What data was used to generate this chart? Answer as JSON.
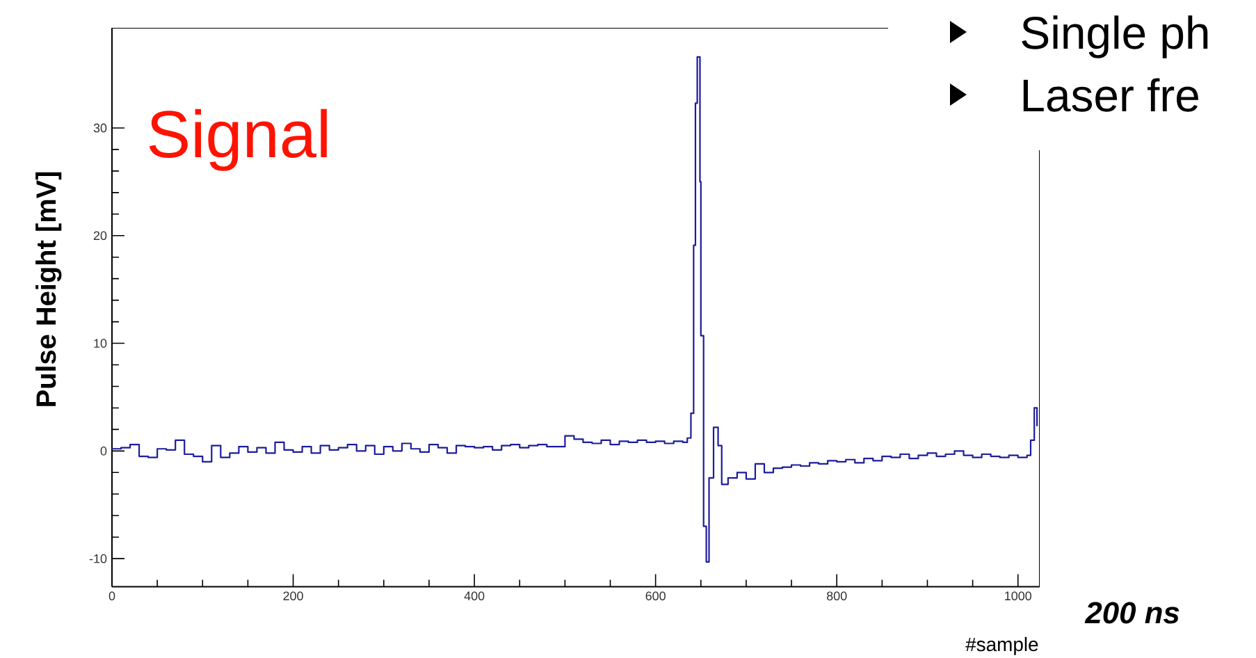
{
  "chart_data": {
    "type": "step",
    "xlabel": "#sample",
    "ylabel": "Pulse Height [mV]",
    "annotations": [
      "Signal",
      "Single ph",
      "Laser fre",
      "200 ns"
    ],
    "xlim": [
      0,
      1024
    ],
    "ylim": [
      -12.6,
      39.3
    ],
    "xticks": [
      0,
      200,
      400,
      600,
      800,
      1000
    ],
    "yticks": [
      -10,
      0,
      10,
      20,
      30
    ],
    "grid": false,
    "series": [
      {
        "color": "#1c1c9c",
        "x": [
          0,
          10,
          20,
          30,
          40,
          50,
          60,
          70,
          80,
          90,
          100,
          110,
          120,
          130,
          140,
          150,
          160,
          170,
          180,
          190,
          200,
          210,
          220,
          230,
          240,
          250,
          260,
          270,
          280,
          290,
          300,
          310,
          320,
          330,
          340,
          350,
          360,
          370,
          380,
          390,
          400,
          410,
          420,
          430,
          440,
          450,
          460,
          470,
          480,
          490,
          500,
          510,
          520,
          530,
          540,
          550,
          560,
          570,
          580,
          590,
          600,
          610,
          620,
          630,
          635,
          639,
          642,
          644,
          646,
          649,
          650,
          653,
          656,
          659,
          664,
          669,
          673,
          680,
          690,
          700,
          710,
          720,
          730,
          740,
          750,
          760,
          770,
          780,
          790,
          800,
          810,
          820,
          830,
          840,
          850,
          860,
          870,
          880,
          890,
          900,
          910,
          920,
          930,
          940,
          950,
          960,
          970,
          980,
          990,
          1000,
          1010,
          1014,
          1018,
          1021
        ],
        "values": [
          0.2,
          0.3,
          0.6,
          -0.5,
          -0.6,
          0.2,
          0.1,
          1.0,
          -0.3,
          -0.5,
          -1.0,
          0.5,
          -0.6,
          -0.2,
          0.4,
          -0.1,
          0.3,
          -0.2,
          0.8,
          0.1,
          -0.1,
          0.4,
          -0.2,
          0.5,
          0.1,
          0.3,
          0.6,
          0.0,
          0.5,
          -0.3,
          0.4,
          0.0,
          0.7,
          0.2,
          -0.1,
          0.6,
          0.3,
          -0.2,
          0.5,
          0.4,
          0.3,
          0.4,
          0.1,
          0.5,
          0.6,
          0.3,
          0.5,
          0.6,
          0.4,
          0.4,
          1.4,
          1.1,
          0.8,
          0.7,
          1.0,
          0.6,
          0.9,
          0.8,
          1.0,
          0.8,
          0.9,
          0.7,
          0.9,
          0.8,
          1.2,
          3.5,
          19.1,
          32.3,
          36.6,
          25.0,
          10.7,
          -7.0,
          -10.3,
          -2.5,
          2.2,
          0.5,
          -3.1,
          -2.5,
          -2.0,
          -2.6,
          -1.2,
          -2.0,
          -1.6,
          -1.5,
          -1.3,
          -1.4,
          -1.1,
          -1.2,
          -0.9,
          -1.0,
          -0.8,
          -1.1,
          -0.7,
          -0.9,
          -0.5,
          -0.6,
          -0.3,
          -0.7,
          -0.4,
          -0.2,
          -0.5,
          -0.3,
          0.0,
          -0.4,
          -0.6,
          -0.3,
          -0.5,
          -0.6,
          -0.4,
          -0.6,
          -0.4,
          1.0,
          4.0,
          2.3
        ]
      }
    ]
  }
}
